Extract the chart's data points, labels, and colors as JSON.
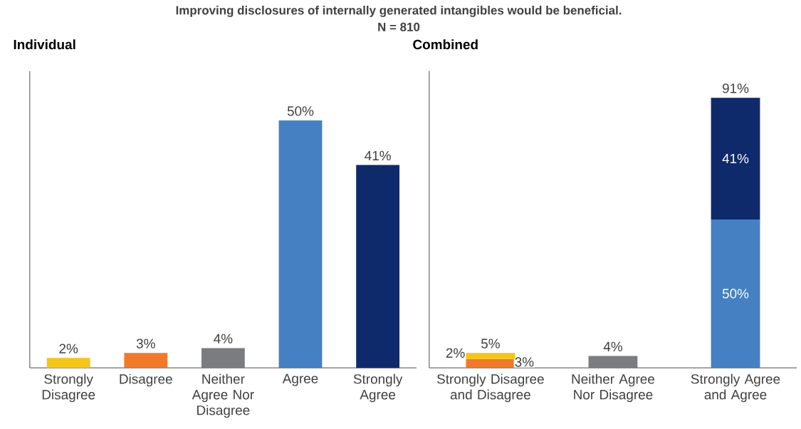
{
  "chart_data": [
    {
      "type": "bar",
      "title": "Individual",
      "annotations": [
        "Improving disclosures of internally generated intangibles would be beneficial.",
        "N = 810"
      ],
      "categories": [
        "Strongly Disagree",
        "Disagree",
        "Neither Agree Nor Disagree",
        "Agree",
        "Strongly Agree"
      ],
      "values": [
        2,
        3,
        4,
        50,
        41
      ],
      "colors": [
        "#f5c518",
        "#f07a2a",
        "#7a7c80",
        "#4580c2",
        "#0f2a6b"
      ],
      "value_labels": [
        "2%",
        "3%",
        "4%",
        "50%",
        "41%"
      ],
      "ylim": [
        0,
        60
      ],
      "tick_labels": "x"
    },
    {
      "type": "bar",
      "title": "Combined",
      "stacked": true,
      "categories": [
        "Strongly Disagree and Disagree",
        "Neither Agree Nor Disagree",
        "Strongly Agree and Agree"
      ],
      "series": [
        {
          "color": "#f07a2a",
          "values": [
            3,
            null,
            null
          ],
          "value_labels": [
            "3%",
            null,
            null
          ]
        },
        {
          "color": "#f5c518",
          "values": [
            2,
            null,
            null
          ],
          "value_labels": [
            "2%",
            null,
            null
          ]
        },
        {
          "color": "#7a7c80",
          "values": [
            null,
            4,
            null
          ]
        },
        {
          "color": "#4580c2",
          "values": [
            null,
            null,
            50
          ],
          "value_labels": [
            null,
            null,
            "50%"
          ]
        },
        {
          "color": "#0f2a6b",
          "values": [
            null,
            null,
            41
          ],
          "value_labels": [
            null,
            null,
            "41%"
          ]
        }
      ],
      "totals": [
        "5%",
        "4%",
        "91%"
      ],
      "ylim": [
        0,
        100
      ],
      "tick_labels": "x"
    }
  ]
}
